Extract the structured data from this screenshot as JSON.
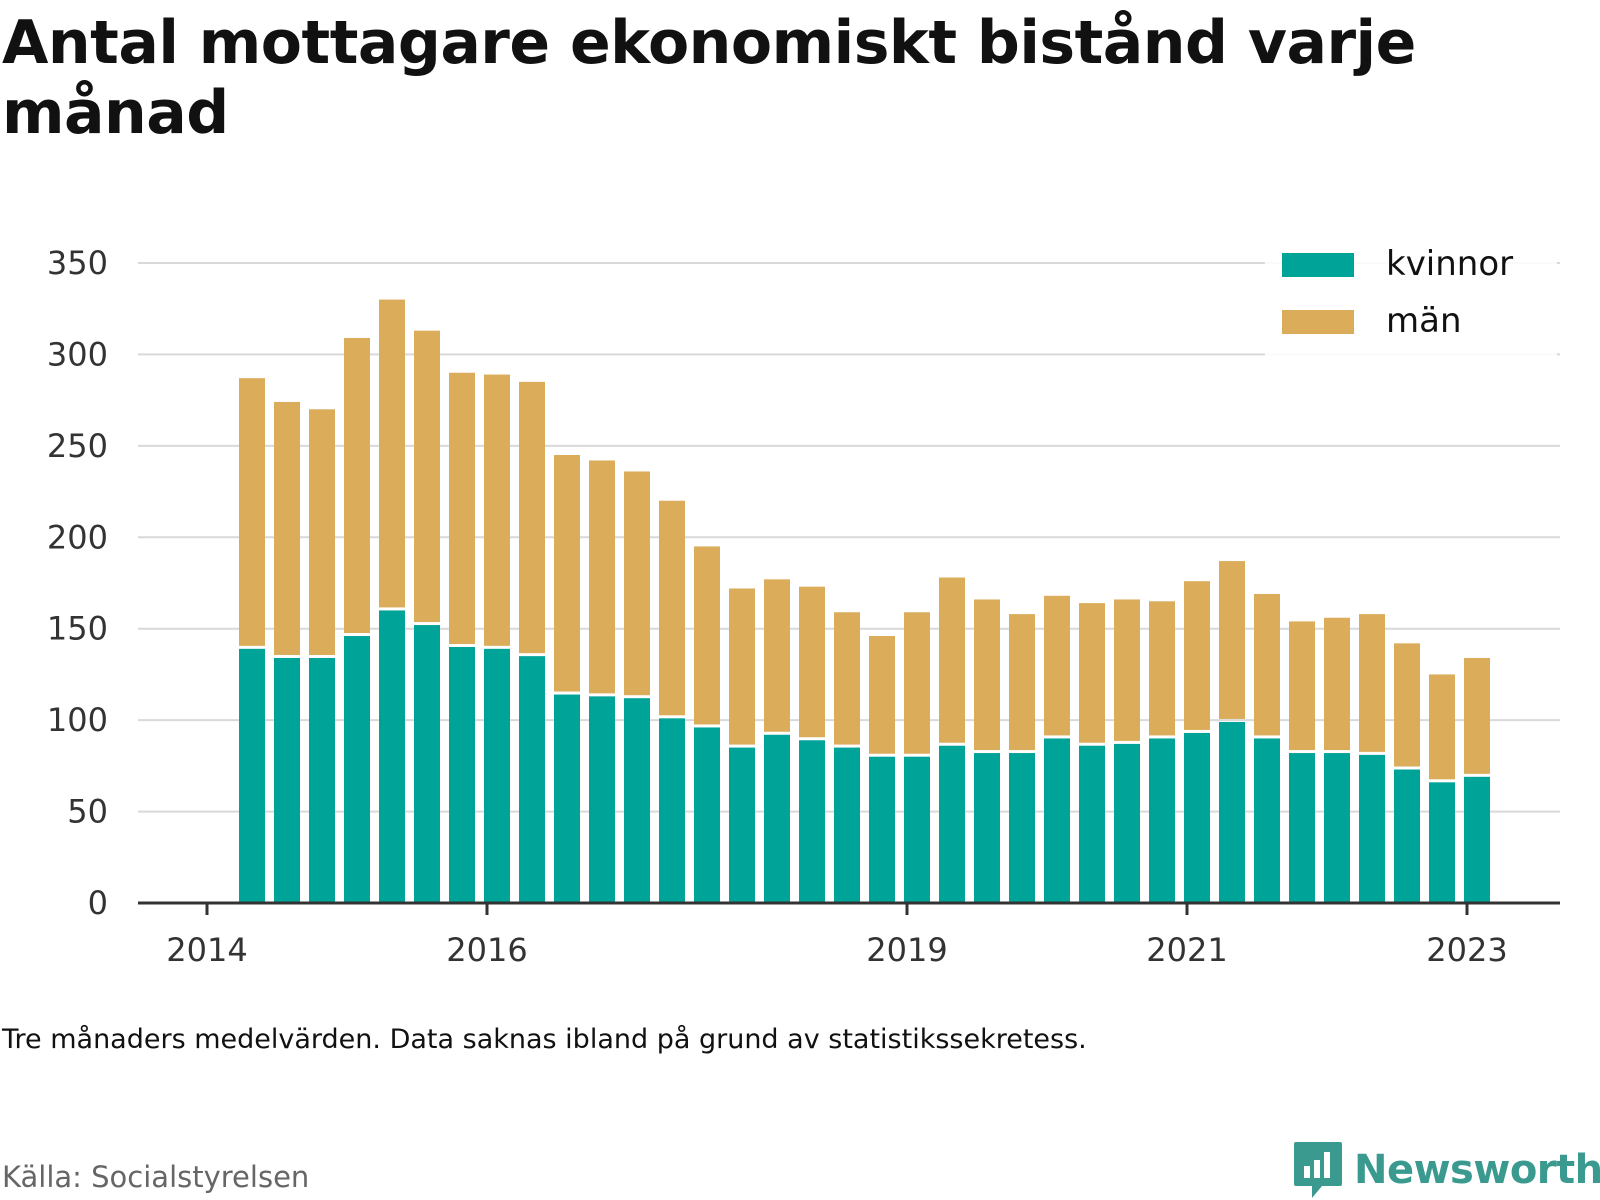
{
  "title": "Antal mottagare ekonomiskt bistånd varje månad",
  "note": "Tre månaders medelvärden. Data saknas ibland på grund av statistikssekretess.",
  "source": "Källa: Socialstyrelsen",
  "brand": "Newsworthy",
  "colors": {
    "kvinnor": "#00a398",
    "man": "#dbad5a",
    "grid": "#d9d9d9",
    "axis": "#333333",
    "brand": "#3a9a8f"
  },
  "chart_data": {
    "type": "bar",
    "stacked": true,
    "x_tick_labels": [
      "2014",
      "2016",
      "2019",
      "2021",
      "2023"
    ],
    "y_tick_labels": [
      "0",
      "50",
      "100",
      "150",
      "200",
      "250",
      "300",
      "350"
    ],
    "ylim": [
      0,
      350
    ],
    "grid": true,
    "legend_position": "top-right",
    "series": [
      {
        "name": "kvinnor",
        "color": "#00a398",
        "values": [
          139,
          134,
          134,
          146,
          160,
          152,
          140,
          139,
          135,
          114,
          113,
          112,
          101,
          96,
          85,
          92,
          89,
          85,
          80,
          80,
          86,
          82,
          82,
          90,
          86,
          87,
          90,
          93,
          99,
          90,
          82,
          82,
          81,
          73,
          66,
          69
        ]
      },
      {
        "name": "män",
        "color": "#dbad5a",
        "values": [
          148,
          140,
          136,
          163,
          170,
          161,
          150,
          150,
          150,
          131,
          129,
          124,
          119,
          99,
          87,
          85,
          84,
          74,
          66,
          79,
          92,
          84,
          76,
          78,
          78,
          79,
          75,
          83,
          88,
          79,
          72,
          74,
          77,
          69,
          59,
          65
        ]
      }
    ]
  }
}
